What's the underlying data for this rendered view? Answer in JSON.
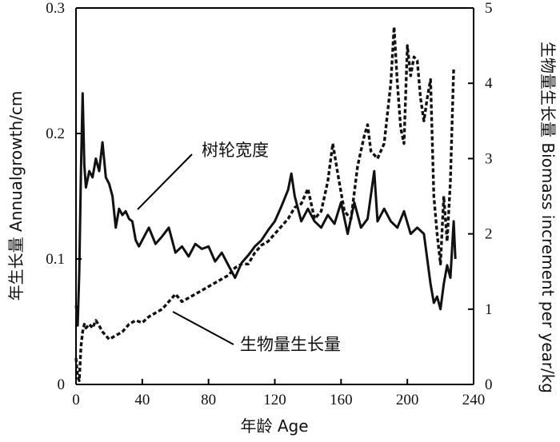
{
  "chart_data": {
    "type": "line",
    "xlabel": "年龄 Age",
    "ylabel_left": "年生长量 Annualgrowth/cm",
    "ylabel_right": "生物量生长量 Biomass increment per year/kg",
    "xlim": [
      0,
      240
    ],
    "ylim_left": [
      0,
      0.3
    ],
    "ylim_right": [
      0,
      5
    ],
    "x_ticks": [
      "0",
      "40",
      "80",
      "120",
      "160",
      "200",
      "240"
    ],
    "y_left_ticks": [
      "0",
      "0.1",
      "0.2",
      "0.3"
    ],
    "y_right_ticks": [
      "0",
      "1",
      "2",
      "3",
      "4",
      "5"
    ],
    "grid": false,
    "legend": "none",
    "annotations": [
      {
        "text": "树轮宽度",
        "series": "tree_ring"
      },
      {
        "text": "生物量生长量",
        "series": "biomass"
      }
    ],
    "series": [
      {
        "name": "树轮宽度",
        "key": "tree_ring",
        "axis": "left",
        "style": "solid",
        "x": [
          0,
          1,
          2,
          3,
          4,
          5,
          6,
          8,
          10,
          12,
          14,
          16,
          18,
          20,
          22,
          24,
          26,
          28,
          30,
          32,
          34,
          36,
          38,
          40,
          44,
          48,
          52,
          56,
          60,
          64,
          68,
          72,
          76,
          80,
          84,
          88,
          92,
          96,
          100,
          104,
          108,
          112,
          116,
          120,
          124,
          128,
          130,
          132,
          136,
          140,
          144,
          148,
          152,
          156,
          160,
          164,
          168,
          172,
          176,
          180,
          182,
          186,
          190,
          194,
          198,
          202,
          206,
          210,
          214,
          216,
          218,
          220,
          222,
          224,
          226,
          228,
          229
        ],
        "values": [
          0.063,
          0.047,
          0.09,
          0.17,
          0.232,
          0.175,
          0.157,
          0.17,
          0.165,
          0.18,
          0.17,
          0.193,
          0.165,
          0.16,
          0.15,
          0.125,
          0.14,
          0.135,
          0.138,
          0.132,
          0.13,
          0.115,
          0.11,
          0.115,
          0.125,
          0.112,
          0.118,
          0.125,
          0.105,
          0.11,
          0.102,
          0.112,
          0.108,
          0.11,
          0.098,
          0.105,
          0.095,
          0.085,
          0.097,
          0.103,
          0.11,
          0.115,
          0.123,
          0.13,
          0.142,
          0.155,
          0.168,
          0.15,
          0.13,
          0.14,
          0.13,
          0.125,
          0.135,
          0.128,
          0.145,
          0.12,
          0.145,
          0.125,
          0.132,
          0.17,
          0.13,
          0.14,
          0.13,
          0.125,
          0.138,
          0.12,
          0.125,
          0.12,
          0.08,
          0.065,
          0.07,
          0.06,
          0.08,
          0.095,
          0.085,
          0.13,
          0.1
        ]
      },
      {
        "name": "生物量生长量",
        "key": "biomass",
        "axis": "right",
        "style": "dashed",
        "x": [
          0,
          1,
          2,
          3,
          4,
          5,
          6,
          8,
          10,
          12,
          14,
          16,
          18,
          20,
          24,
          28,
          32,
          36,
          40,
          44,
          48,
          52,
          56,
          60,
          64,
          68,
          72,
          76,
          80,
          84,
          88,
          92,
          96,
          100,
          104,
          108,
          112,
          116,
          120,
          124,
          128,
          132,
          136,
          140,
          144,
          148,
          152,
          155,
          158,
          162,
          166,
          170,
          174,
          176,
          178,
          182,
          186,
          190,
          192,
          194,
          196,
          198,
          200,
          202,
          204,
          206,
          208,
          210,
          212,
          214,
          216,
          218,
          220,
          222,
          224,
          226,
          228
        ],
        "values": [
          0.35,
          0.1,
          0.05,
          0.5,
          0.7,
          0.8,
          0.75,
          0.8,
          0.75,
          0.85,
          0.78,
          0.7,
          0.65,
          0.6,
          0.65,
          0.7,
          0.8,
          0.85,
          0.82,
          0.9,
          0.95,
          1.0,
          1.1,
          1.2,
          1.1,
          1.15,
          1.2,
          1.25,
          1.3,
          1.35,
          1.4,
          1.45,
          1.55,
          1.6,
          1.6,
          1.75,
          1.85,
          1.9,
          2.0,
          2.1,
          2.2,
          2.35,
          2.4,
          2.6,
          2.2,
          2.3,
          2.7,
          3.2,
          2.8,
          2.3,
          2.2,
          2.9,
          3.3,
          3.45,
          3.1,
          3.0,
          3.2,
          4.0,
          4.75,
          4.0,
          3.4,
          3.2,
          4.5,
          4.1,
          4.35,
          4.3,
          3.8,
          3.5,
          3.8,
          4.05,
          2.5,
          2.0,
          1.6,
          2.5,
          1.9,
          2.7,
          4.2
        ]
      }
    ]
  }
}
